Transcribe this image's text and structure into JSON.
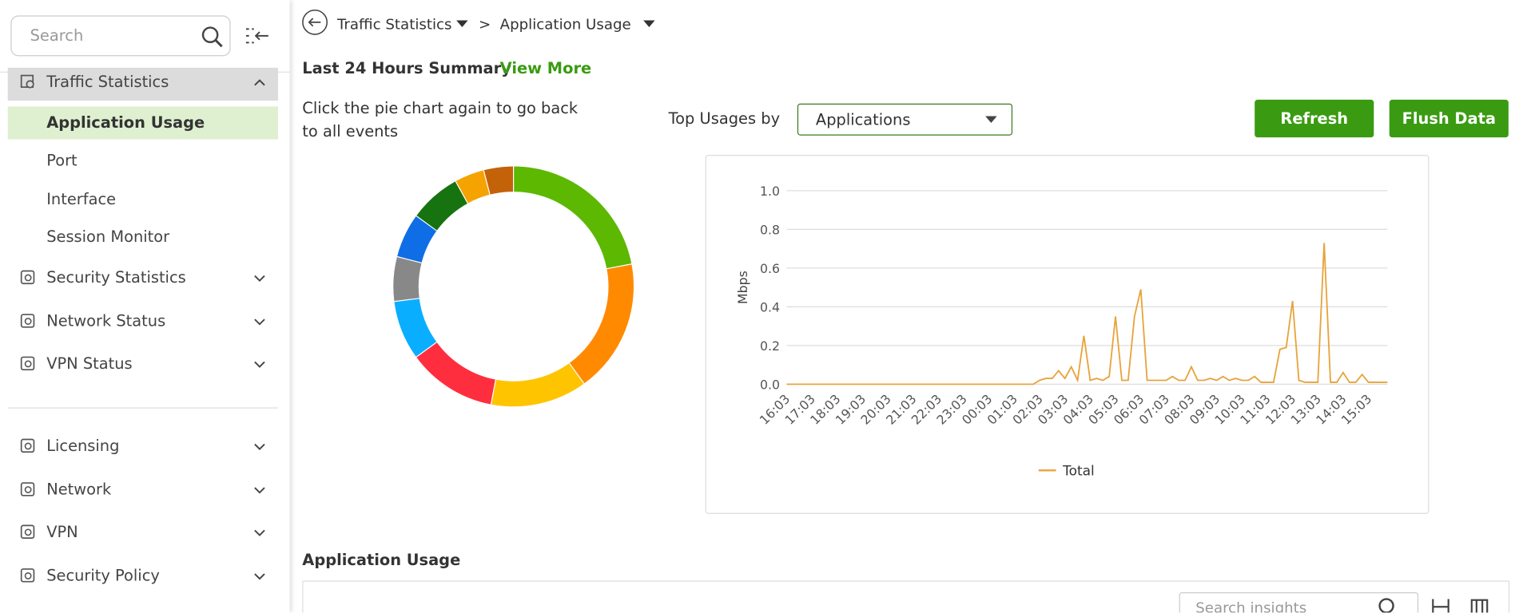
{
  "sidebar": {
    "search_placeholder": "Search",
    "section": "Traffic Statistics",
    "subitems": [
      "Application Usage",
      "Port",
      "Interface",
      "Session Monitor"
    ],
    "groups": [
      "Security Statistics",
      "Network Status",
      "VPN Status"
    ],
    "groups2": [
      "Licensing",
      "Network",
      "VPN",
      "Security Policy"
    ]
  },
  "breadcrumb": {
    "items": [
      "Traffic Statistics",
      "Application Usage"
    ],
    "separator": ">"
  },
  "summary": {
    "title": "Last 24 Hours Summary",
    "link": "View More",
    "hint": "Click the pie chart again to go back to all events",
    "top_usages_label": "Top Usages by",
    "select_value": "Applications",
    "buttons": [
      "Refresh",
      "Flush Data"
    ]
  },
  "chart_data": [
    {
      "type": "pie",
      "values": [
        22,
        18,
        13,
        12,
        8,
        6,
        6,
        7,
        4,
        4
      ],
      "colors": [
        "#5cb800",
        "#ff8a00",
        "#ffc400",
        "#ff2e3f",
        "#0aaeff",
        "#888888",
        "#0f6ee6",
        "#17730f",
        "#f5a300",
        "#c4620a"
      ]
    },
    {
      "type": "line",
      "ylabel": "Mbps",
      "categories": [
        "16:03",
        null,
        null,
        null,
        "17:03",
        null,
        null,
        null,
        "18:03",
        null,
        null,
        null,
        "19:03",
        null,
        null,
        null,
        "20:03",
        null,
        null,
        null,
        "21:03",
        null,
        null,
        null,
        "22:03",
        null,
        null,
        null,
        "23:03",
        null,
        null,
        null,
        "00:03",
        null,
        null,
        null,
        "01:03",
        null,
        null,
        null,
        "02:03",
        null,
        null,
        null,
        "03:03",
        null,
        null,
        null,
        "04:03",
        null,
        null,
        null,
        "05:03",
        null,
        null,
        null,
        "06:03",
        null,
        null,
        null,
        "07:03",
        null,
        null,
        null,
        "08:03",
        null,
        null,
        null,
        "09:03",
        null,
        null,
        null,
        "10:03",
        null,
        null,
        null,
        "11:03",
        null,
        null,
        null,
        "12:03",
        null,
        null,
        null,
        "13:03",
        null,
        null,
        null,
        "14:03",
        null,
        null,
        null,
        "15:03",
        null,
        null,
        null
      ],
      "series": [
        {
          "name": "Total",
          "color": "#e8a33a",
          "values": [
            0,
            0,
            0,
            0,
            0,
            0,
            0,
            0,
            0,
            0,
            0,
            0,
            0,
            0,
            0,
            0,
            0,
            0,
            0,
            0,
            0,
            0,
            0,
            0,
            0,
            0,
            0,
            0,
            0,
            0,
            0,
            0,
            0,
            0,
            0,
            0,
            0,
            0,
            0,
            0,
            0.02,
            0.03,
            0.03,
            0.07,
            0.03,
            0.09,
            0.02,
            0.25,
            0.02,
            0.03,
            0.02,
            0.04,
            0.35,
            0.02,
            0.02,
            0.35,
            0.49,
            0.02,
            0.02,
            0.02,
            0.02,
            0.04,
            0.02,
            0.02,
            0.09,
            0.02,
            0.02,
            0.03,
            0.02,
            0.04,
            0.02,
            0.03,
            0.02,
            0.02,
            0.04,
            0.01,
            0.01,
            0.01,
            0.18,
            0.19,
            0.43,
            0.02,
            0.01,
            0.01,
            0.01,
            0.73,
            0.01,
            0.01,
            0.06,
            0.01,
            0.01,
            0.05,
            0.01,
            0.01,
            0.01,
            0.01
          ]
        }
      ],
      "ylim": [
        0,
        1
      ],
      "yticks": [
        {
          "value": 0,
          "label": "0.0"
        },
        {
          "value": 0.2,
          "label": "0.2"
        },
        {
          "value": 0.4,
          "label": "0.4"
        },
        {
          "value": 0.6,
          "label": "0.6"
        },
        {
          "value": 0.8,
          "label": "0.8"
        },
        {
          "value": 1,
          "label": "1.0"
        }
      ],
      "grid": true
    }
  ],
  "table": {
    "title": "Application Usage",
    "search_placeholder": "Search insights"
  }
}
